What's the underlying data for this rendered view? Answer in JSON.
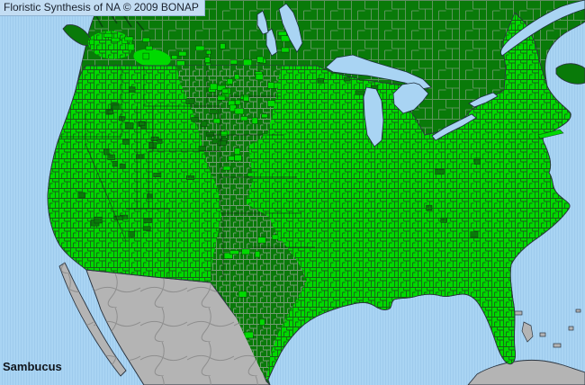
{
  "header": {
    "title": "Floristic Synthesis of NA © 2009 BONAP"
  },
  "footer": {
    "taxon": "Sambucus"
  },
  "colors": {
    "water": "#a9d4f3",
    "water_alt": "#9ecbed",
    "land_bright_green": "#00d900",
    "land_dark_green": "#097a09",
    "county_line_bright_area": "#1d4a1d",
    "county_line_dark_area": "#7fa07f",
    "land_gray": "#b4b4b4",
    "mexico_state_line": "#8a8a8a",
    "coast_line": "#2a3440",
    "state_line": "#151515",
    "titlebar_bg": "#c3ddf3",
    "text_color": "#1b222e"
  }
}
